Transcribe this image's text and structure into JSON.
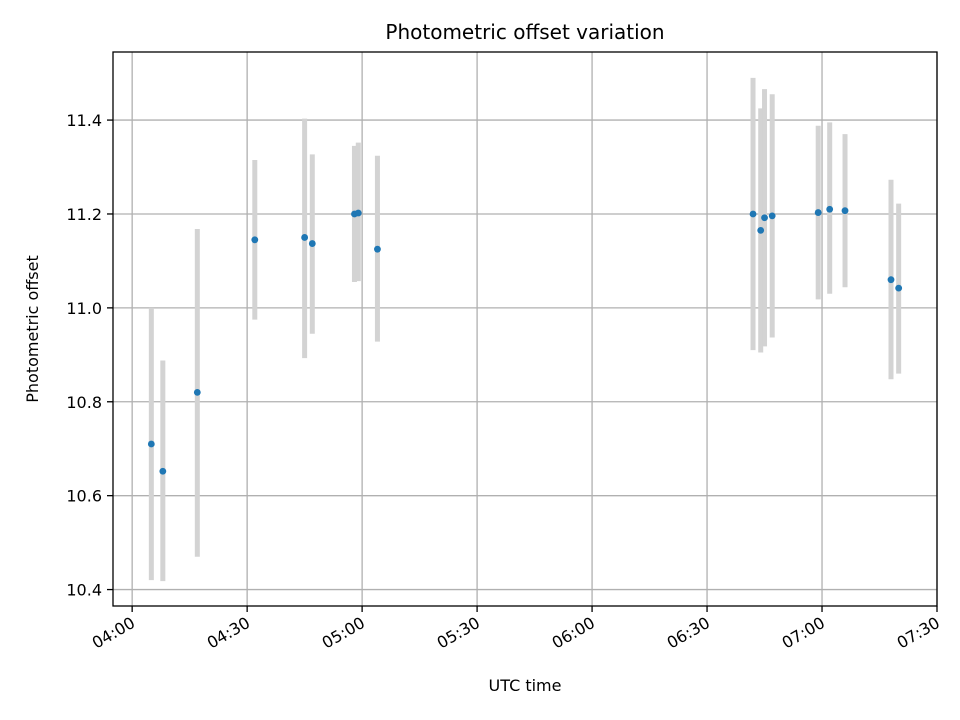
{
  "chart_data": {
    "type": "scatter",
    "title": "Photometric offset variation",
    "xlabel": "UTC time",
    "ylabel": "Photometric offset",
    "x_ticks": [
      "04:00",
      "04:30",
      "05:00",
      "05:30",
      "06:00",
      "06:30",
      "07:00",
      "07:30"
    ],
    "y_ticks": [
      10.4,
      10.6,
      10.8,
      11.0,
      11.2,
      11.4
    ],
    "xlim": [
      "03:55",
      "07:30"
    ],
    "ylim": [
      10.365,
      11.545
    ],
    "grid": true,
    "colors": {
      "point": "#1f77b4",
      "errorbar": "#d3d3d3",
      "grid": "#b0b0b0"
    },
    "points": [
      {
        "t": "04:05",
        "y": 10.71,
        "ymin": 10.42,
        "ymax": 11.0
      },
      {
        "t": "04:08",
        "y": 10.652,
        "ymin": 10.418,
        "ymax": 10.888
      },
      {
        "t": "04:17",
        "y": 10.82,
        "ymin": 10.47,
        "ymax": 11.168
      },
      {
        "t": "04:32",
        "y": 11.145,
        "ymin": 10.975,
        "ymax": 11.315
      },
      {
        "t": "04:45",
        "y": 11.15,
        "ymin": 10.893,
        "ymax": 11.403
      },
      {
        "t": "04:47",
        "y": 11.137,
        "ymin": 10.945,
        "ymax": 11.327
      },
      {
        "t": "04:58",
        "y": 11.2,
        "ymin": 11.055,
        "ymax": 11.345
      },
      {
        "t": "04:59",
        "y": 11.202,
        "ymin": 11.057,
        "ymax": 11.352
      },
      {
        "t": "05:04",
        "y": 11.125,
        "ymin": 10.928,
        "ymax": 11.324
      },
      {
        "t": "06:42",
        "y": 11.2,
        "ymin": 10.91,
        "ymax": 11.49
      },
      {
        "t": "06:44",
        "y": 11.165,
        "ymin": 10.905,
        "ymax": 11.425
      },
      {
        "t": "06:45",
        "y": 11.192,
        "ymin": 10.918,
        "ymax": 11.466
      },
      {
        "t": "06:47",
        "y": 11.196,
        "ymin": 10.937,
        "ymax": 11.455
      },
      {
        "t": "06:59",
        "y": 11.203,
        "ymin": 11.018,
        "ymax": 11.388
      },
      {
        "t": "07:02",
        "y": 11.21,
        "ymin": 11.03,
        "ymax": 11.395
      },
      {
        "t": "07:06",
        "y": 11.207,
        "ymin": 11.044,
        "ymax": 11.37
      },
      {
        "t": "07:18",
        "y": 11.06,
        "ymin": 10.848,
        "ymax": 11.273
      },
      {
        "t": "07:20",
        "y": 11.042,
        "ymin": 10.86,
        "ymax": 11.222
      }
    ]
  }
}
